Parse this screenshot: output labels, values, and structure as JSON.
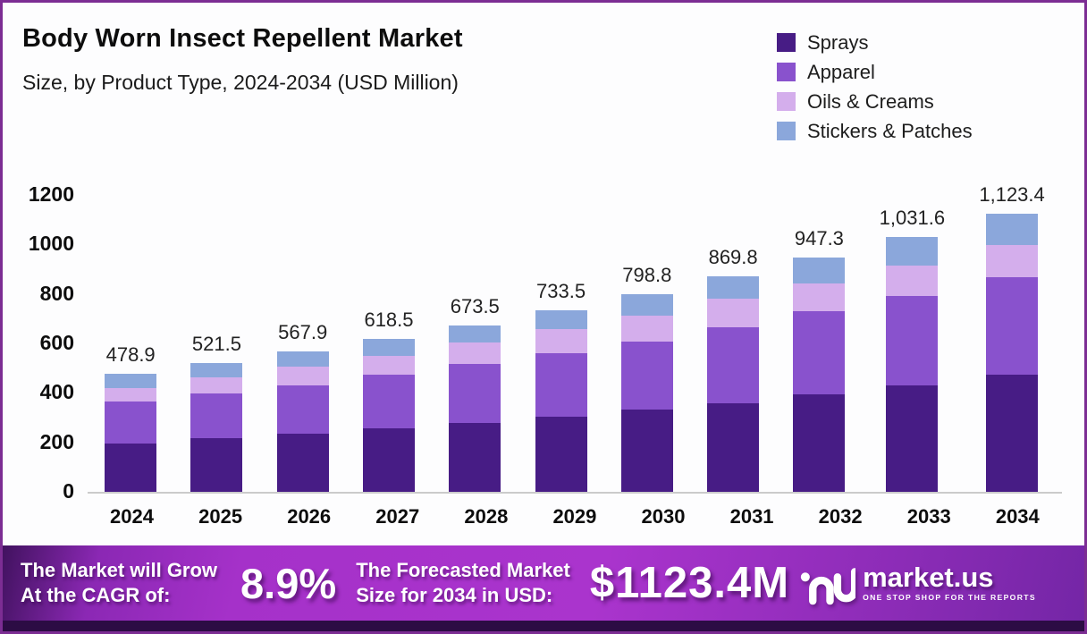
{
  "header": {
    "title": "Body Worn Insect Repellent Market",
    "subtitle": "Size, by Product Type, 2024-2034 (USD Million)"
  },
  "legend": [
    {
      "label": "Sprays",
      "color": "#471c85"
    },
    {
      "label": "Apparel",
      "color": "#8952cd"
    },
    {
      "label": "Oils & Creams",
      "color": "#d4aeec"
    },
    {
      "label": "Stickers & Patches",
      "color": "#8ba7db"
    }
  ],
  "chart_data": {
    "type": "bar",
    "stacked": true,
    "title": "Body Worn Insect Repellent Market Size, by Product Type, 2024-2034 (USD Million)",
    "categories": [
      "2024",
      "2025",
      "2026",
      "2027",
      "2028",
      "2029",
      "2030",
      "2031",
      "2032",
      "2033",
      "2034"
    ],
    "series": [
      {
        "name": "Sprays",
        "color": "#471c85",
        "values": [
          196,
          216,
          234,
          255,
          280,
          305,
          332,
          358,
          394,
          430,
          472
        ]
      },
      {
        "name": "Apparel",
        "color": "#8952cd",
        "values": [
          168,
          183,
          198,
          220,
          238,
          255,
          275,
          306,
          336,
          362,
          396
        ]
      },
      {
        "name": "Oils & Creams",
        "color": "#d4aeec",
        "values": [
          55,
          62,
          74,
          73,
          85,
          98,
          105,
          116,
          111,
          121,
          131
        ]
      },
      {
        "name": "Stickers & Patches",
        "color": "#8ba7db",
        "values": [
          59.9,
          60.5,
          61.9,
          70.5,
          70.5,
          75.5,
          86.8,
          89.8,
          106.3,
          118.6,
          124.4
        ]
      }
    ],
    "totals": [
      478.9,
      521.5,
      567.9,
      618.5,
      673.5,
      733.5,
      798.8,
      869.8,
      947.3,
      1031.6,
      1123.4
    ],
    "total_labels": [
      "478.9",
      "521.5",
      "567.9",
      "618.5",
      "673.5",
      "733.5",
      "798.8",
      "869.8",
      "947.3",
      "1,031.6",
      "1,123.4"
    ],
    "yticks": [
      0,
      200,
      400,
      600,
      800,
      1000,
      1200
    ],
    "ylim": [
      0,
      1200
    ],
    "xlabel": "",
    "ylabel": "",
    "grid": false,
    "legend_position": "top-right"
  },
  "banner": {
    "cagr_label_line1": "The Market will Grow",
    "cagr_label_line2": "At the CAGR of:",
    "cagr_value": "8.9%",
    "forecast_label_line1": "The Forecasted Market",
    "forecast_label_line2": "Size for 2034 in USD:",
    "forecast_value": "$1123.4M",
    "logo_name": "market.us",
    "logo_tagline": "ONE STOP SHOP FOR THE REPORTS"
  },
  "colors": {
    "frame_border": "#7c2d93",
    "background": "#fdfdfe",
    "axis_line": "#cbcbcb",
    "banner_bright": "#aa34cd",
    "banner_dark_left": "#41125f",
    "banner_right": "#7426a6",
    "banner_bottom_strip": "#2c0c44",
    "text_dark": "#0d0d0d",
    "text_white": "#ffffff"
  }
}
